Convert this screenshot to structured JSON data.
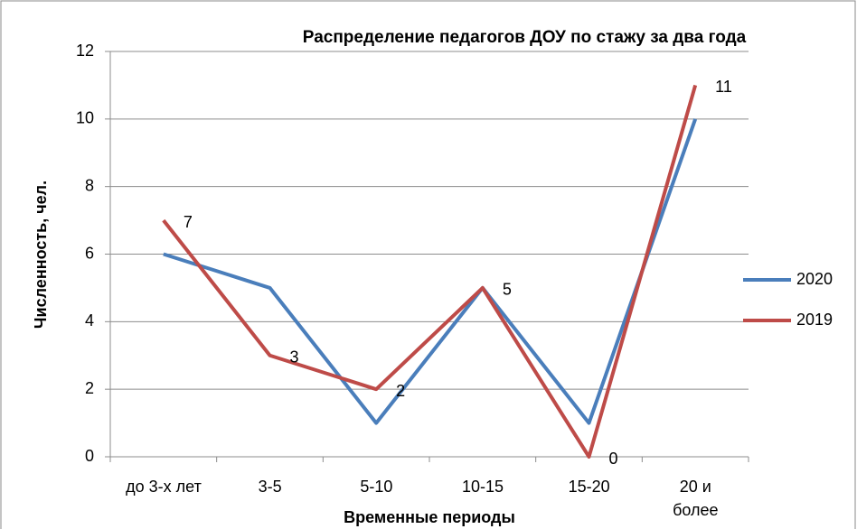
{
  "chart_data": {
    "type": "line",
    "title": "Распределение педагогов ДОУ по стажу за два года",
    "x_label": "Временные периоды",
    "y_label": "Численность, чел.",
    "categories": [
      "до 3-х лет",
      "3-5",
      "5-10",
      "10-15",
      "15-20",
      "20 и\nболее"
    ],
    "series": [
      {
        "name": "2020",
        "color": "#4a7ebb",
        "values": [
          6,
          5,
          1,
          5,
          1,
          10
        ]
      },
      {
        "name": "2019",
        "color": "#be4b48",
        "values": [
          7,
          3,
          2,
          5,
          0,
          11
        ],
        "data_labels": true
      }
    ],
    "ylim": [
      0,
      12
    ],
    "yticks": [
      0,
      2,
      4,
      6,
      8,
      10,
      12
    ],
    "grid": true,
    "legend": "right"
  }
}
